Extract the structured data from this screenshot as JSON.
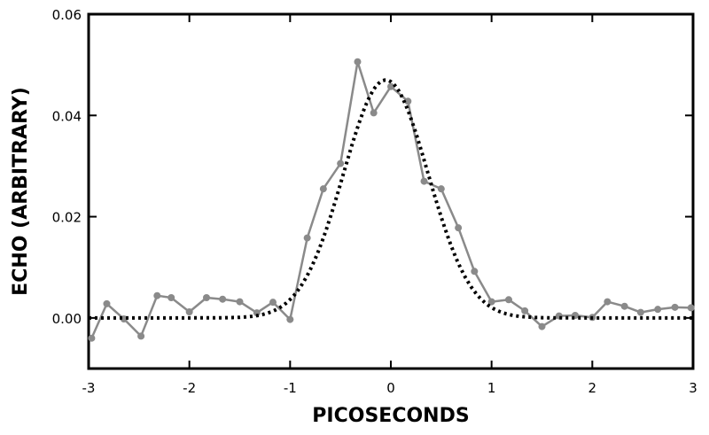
{
  "chart_data": {
    "type": "line",
    "title": "",
    "xlabel": "PICOSECONDS",
    "ylabel": "ECHO (ARBITRARY)",
    "xlim": [
      -3,
      3
    ],
    "ylim": [
      -0.01,
      0.06
    ],
    "x_ticks": [
      -3,
      -2,
      -1,
      0,
      1,
      2,
      3
    ],
    "x_tick_labels": [
      "-3",
      "-2",
      "-1",
      "0",
      "1",
      "2",
      "3"
    ],
    "y_ticks": [
      0.0,
      0.02,
      0.04,
      0.06
    ],
    "y_tick_labels": [
      "0.00",
      "0.02",
      "0.04",
      "0.06"
    ],
    "grid": false,
    "legend": "none",
    "series": [
      {
        "style": "solid-markers",
        "color": "#8a8a8a",
        "x": [
          -2.97,
          -2.82,
          -2.65,
          -2.48,
          -2.32,
          -2.18,
          -2.0,
          -1.83,
          -1.67,
          -1.5,
          -1.33,
          -1.17,
          -1.0,
          -0.83,
          -0.67,
          -0.5,
          -0.33,
          -0.17,
          0.0,
          0.17,
          0.33,
          0.5,
          0.67,
          0.83,
          1.0,
          1.17,
          1.33,
          1.5,
          1.67,
          1.83,
          2.0,
          2.15,
          2.32,
          2.48,
          2.65,
          2.82,
          2.98
        ],
        "y": [
          -0.004,
          0.0028,
          -0.0002,
          -0.0036,
          0.0044,
          0.004,
          0.0012,
          0.004,
          0.0037,
          0.0032,
          0.001,
          0.0031,
          -0.0003,
          0.0158,
          0.0255,
          0.0305,
          0.0506,
          0.0405,
          0.0457,
          0.0428,
          0.027,
          0.0255,
          0.0178,
          0.0092,
          0.0032,
          0.0036,
          0.0014,
          -0.0017,
          0.0004,
          0.0005,
          0.0001,
          0.0032,
          0.0023,
          0.0011,
          0.0017,
          0.0021,
          0.002
        ]
      },
      {
        "style": "dotted",
        "color": "#000000",
        "function": "gaussian",
        "amplitude": 0.047,
        "center": -0.05,
        "sigma": 0.42,
        "xrange": [
          -3,
          3
        ]
      }
    ]
  }
}
